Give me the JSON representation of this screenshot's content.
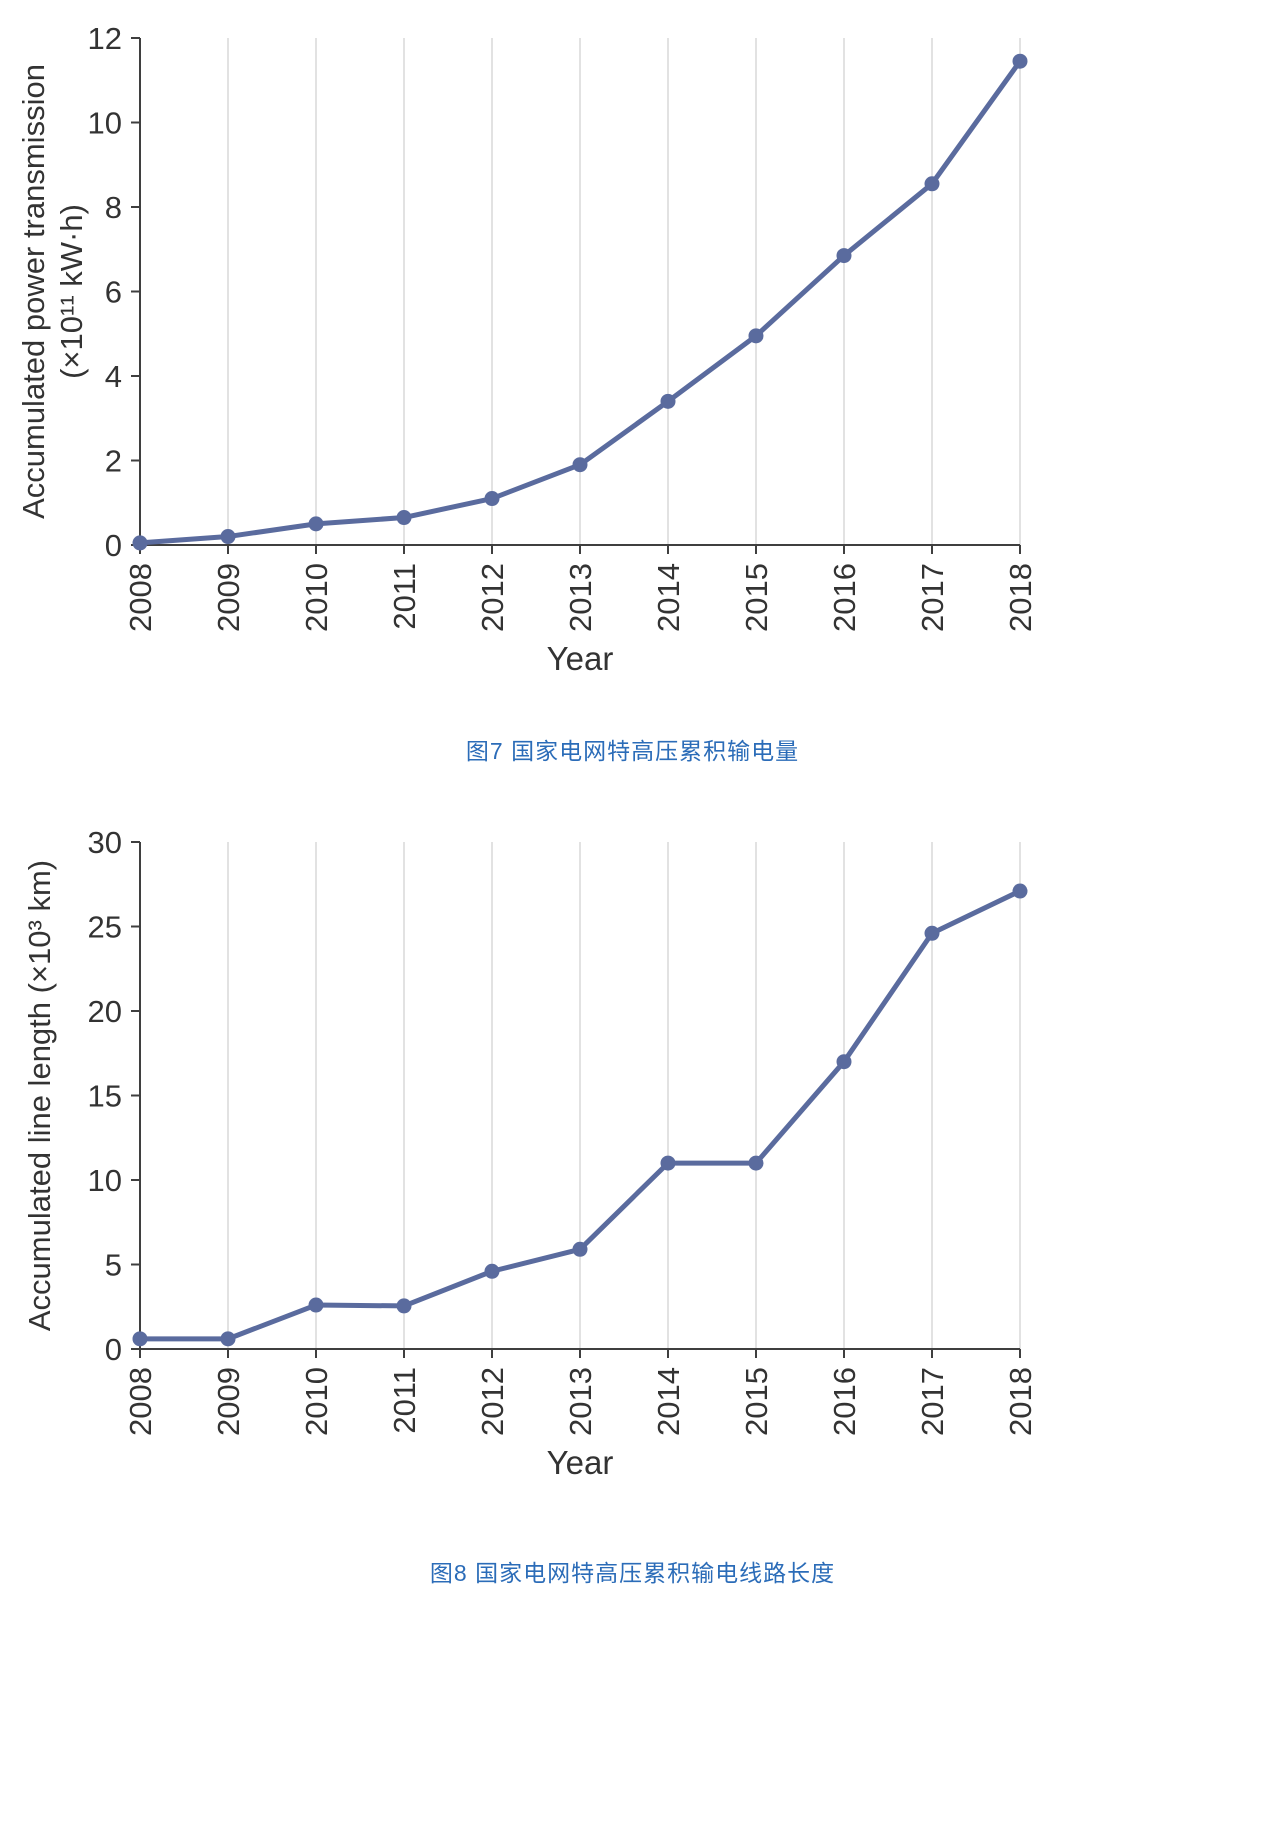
{
  "page": {
    "background": "#ffffff"
  },
  "palette": {
    "line": "#5a6b9e",
    "marker": "#5a6b9e",
    "grid": "#d9d9d9",
    "axis": "#3f3f3f",
    "text": "#333333",
    "caption": "#2b6cb8"
  },
  "chart_data": [
    {
      "type": "line",
      "caption": "图7  国家电网特高压累积输电量",
      "x": [
        "2008",
        "2009",
        "2010",
        "2011",
        "2012",
        "2013",
        "2014",
        "2015",
        "2016",
        "2017",
        "2018"
      ],
      "series": [
        {
          "name": "Accumulated power transmission",
          "values": [
            0.05,
            0.2,
            0.5,
            0.65,
            1.1,
            1.9,
            3.4,
            4.95,
            6.85,
            8.55,
            11.45
          ]
        }
      ],
      "xlabel": "Year",
      "ylabel_lines": [
        "Accumulated power transmission",
        "(×10¹¹ kW·h)"
      ],
      "ylim": [
        0,
        12
      ],
      "ytick_step": 2,
      "grid": "vertical",
      "legend": "none"
    },
    {
      "type": "line",
      "caption": "图8  国家电网特高压累积输电线路长度",
      "x": [
        "2008",
        "2009",
        "2010",
        "2011",
        "2012",
        "2013",
        "2014",
        "2015",
        "2016",
        "2017",
        "2018"
      ],
      "series": [
        {
          "name": "Accumulated line length",
          "values": [
            0.6,
            0.6,
            2.6,
            2.55,
            4.6,
            5.9,
            11.0,
            11.0,
            17.0,
            24.6,
            27.1
          ]
        }
      ],
      "xlabel": "Year",
      "ylabel_lines": [
        "Accumulated line length (×10³ km)"
      ],
      "ylim": [
        0,
        30
      ],
      "ytick_step": 5,
      "grid": "vertical",
      "legend": "none"
    }
  ]
}
